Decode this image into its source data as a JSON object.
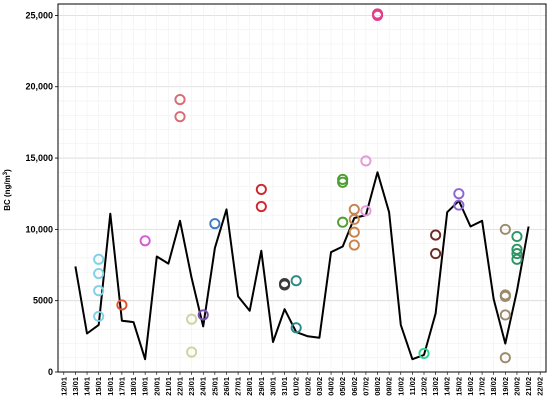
{
  "chart_data": {
    "type": "line",
    "ylabel": "BC (ng/m³)",
    "ylabel_main": "BC (ng/m",
    "ylabel_sup": "3",
    "ylabel_end": ")",
    "ylim": [
      0,
      25800
    ],
    "y_ticks": [
      0,
      5000,
      10000,
      15000,
      20000,
      25000
    ],
    "y_tick_labels": [
      "0",
      "5000",
      "10,000",
      "15,000",
      "20,000",
      "25,000"
    ],
    "grid": true,
    "legend": "none",
    "x_labels": [
      "12/01",
      "13/01",
      "14/01",
      "15/01",
      "16/01",
      "17/01",
      "18/01",
      "19/01",
      "20/01",
      "21/01",
      "22/01",
      "23/01",
      "24/01",
      "25/01",
      "26/01",
      "27/01",
      "28/01",
      "29/01",
      "30/01",
      "31/01",
      "01/02",
      "02/02",
      "03/02",
      "04/02",
      "05/02",
      "06/02",
      "07/02",
      "08/02",
      "09/02",
      "10/02",
      "11/02",
      "12/02",
      "13/02",
      "14/02",
      "15/02",
      "16/02",
      "17/02",
      "18/02",
      "19/02",
      "20/02",
      "21/02",
      "22/02"
    ],
    "line_series": {
      "color": "#000000",
      "points": [
        [
          1,
          7400
        ],
        [
          2,
          2700
        ],
        [
          3,
          3300
        ],
        [
          4,
          11100
        ],
        [
          5,
          3600
        ],
        [
          6,
          3500
        ],
        [
          7,
          900
        ],
        [
          8,
          8100
        ],
        [
          9,
          7600
        ],
        [
          10,
          10600
        ],
        [
          11,
          6600
        ],
        [
          12,
          3200
        ],
        [
          13,
          8700
        ],
        [
          14,
          11400
        ],
        [
          15,
          5300
        ],
        [
          16,
          4300
        ],
        [
          17,
          8500
        ],
        [
          18,
          2100
        ],
        [
          19,
          4400
        ],
        [
          20,
          2800
        ],
        [
          21,
          2500
        ],
        [
          22,
          2400
        ],
        [
          23,
          8400
        ],
        [
          24,
          8800
        ],
        [
          25,
          10800
        ],
        [
          26,
          11000
        ],
        [
          27,
          14000
        ],
        [
          28,
          11200
        ],
        [
          29,
          3300
        ],
        [
          30,
          900
        ],
        [
          31,
          1200
        ],
        [
          32,
          4100
        ],
        [
          33,
          11200
        ],
        [
          34,
          12000
        ],
        [
          35,
          10200
        ],
        [
          36,
          10600
        ],
        [
          37,
          5100
        ],
        [
          38,
          2000
        ],
        [
          39,
          5700
        ],
        [
          40,
          10200
        ]
      ]
    },
    "markers": [
      {
        "x": 3,
        "values": [
          7900,
          6900,
          5700,
          3900
        ],
        "color": "#7fd0e8"
      },
      {
        "x": 5,
        "values": [
          4700
        ],
        "color": "#e2522a"
      },
      {
        "x": 7,
        "values": [
          9200
        ],
        "color": "#d65ad8"
      },
      {
        "x": 10,
        "values": [
          19100,
          17900
        ],
        "color": "#d96b75"
      },
      {
        "x": 11,
        "values": [
          3700,
          1400
        ],
        "color": "#cfd49a"
      },
      {
        "x": 12,
        "values": [
          4000
        ],
        "color": "#7b4fb0"
      },
      {
        "x": 13,
        "values": [
          10400
        ],
        "color": "#3f79c7"
      },
      {
        "x": 17,
        "values": [
          12800,
          11600
        ],
        "color": "#d0262e"
      },
      {
        "x": 19,
        "values": [
          6200,
          6100
        ],
        "color": "#3a3a3a"
      },
      {
        "x": 20,
        "values": [
          6400,
          3100
        ],
        "color": "#2a8a8a"
      },
      {
        "x": 24,
        "values": [
          13500,
          13300,
          10500
        ],
        "color": "#4c9e2e"
      },
      {
        "x": 25,
        "values": [
          11400,
          10700,
          9800,
          8900
        ],
        "color": "#c8844a"
      },
      {
        "x": 26,
        "values": [
          14800,
          11300
        ],
        "color": "#e49ad8"
      },
      {
        "x": 27,
        "values": [
          25100,
          25000
        ],
        "color": "#e23d8a"
      },
      {
        "x": 31,
        "values": [
          1300
        ],
        "color": "#2ad690"
      },
      {
        "x": 32,
        "values": [
          9600,
          8300
        ],
        "color": "#6b2a24"
      },
      {
        "x": 34,
        "values": [
          12500,
          11700
        ],
        "color": "#8a68d0"
      },
      {
        "x": 38,
        "values": [
          10000,
          5400,
          5300,
          4000,
          1000
        ],
        "color": "#9c8a6a"
      },
      {
        "x": 39,
        "values": [
          9500,
          8600,
          8300,
          7900
        ],
        "color": "#2e9466"
      }
    ]
  }
}
